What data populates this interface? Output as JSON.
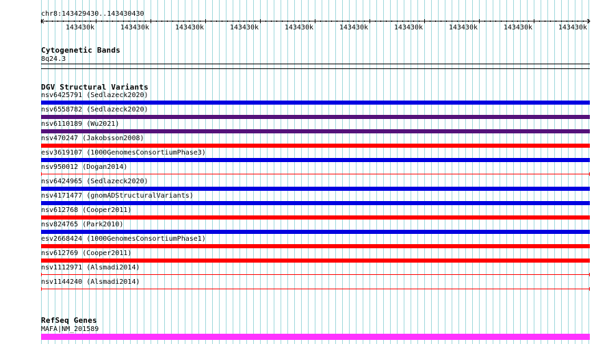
{
  "ruler": {
    "location": "chr8:143429430..143430430",
    "ticks": [
      "143430k",
      "143430k",
      "143430k",
      "143430k",
      "143430k",
      "143430k",
      "143430k",
      "143430k",
      "143430k",
      "143430k"
    ]
  },
  "cytogenetic": {
    "title": "Cytogenetic Bands",
    "band": "8q24.3"
  },
  "dgv": {
    "title": "DGV Structural Variants",
    "variants": [
      {
        "label": "nsv6425791 (Sedlazeck2020)",
        "color": "#0000e0",
        "style": "bar"
      },
      {
        "label": "nsv6558782 (Sedlazeck2020)",
        "color": "#54127a",
        "style": "bar"
      },
      {
        "label": "nsv6110189 (Wu2021)",
        "color": "#54127a",
        "style": "bar"
      },
      {
        "label": "nsv470247 (Jakobsson2008)",
        "color": "#ff0000",
        "style": "bar"
      },
      {
        "label": "esv3619107 (1000GenomesConsortiumPhase3)",
        "color": "#0000e0",
        "style": "bar"
      },
      {
        "label": "nsv950012 (Dogan2014)",
        "color": "#ff0000",
        "style": "line"
      },
      {
        "label": "nsv6424965 (Sedlazeck2020)",
        "color": "#0000e0",
        "style": "bar"
      },
      {
        "label": "nsv4171477 (gnomADStructuralVariants)",
        "color": "#0000e0",
        "style": "bar"
      },
      {
        "label": "nsv612768 (Cooper2011)",
        "color": "#ff0000",
        "style": "bar"
      },
      {
        "label": "nsv824765 (Park2010)",
        "color": "#0000e0",
        "style": "bar"
      },
      {
        "label": "esv2668424 (1000GenomesConsortiumPhase1)",
        "color": "#ff0000",
        "style": "bar"
      },
      {
        "label": "nsv612769 (Cooper2011)",
        "color": "#ff0000",
        "style": "bar"
      },
      {
        "label": "nsv1112971 (Alsmadi2014)",
        "color": "#ff0000",
        "style": "line"
      },
      {
        "label": "nsv1144240 (Alsmadi2014)",
        "color": "#ff0000",
        "style": "line"
      }
    ]
  },
  "refseq": {
    "title": "RefSeq Genes",
    "gene": "MAFA|NM_201589",
    "color": "#ff33ff"
  },
  "colors": {
    "grid_line": "#9fd8dc",
    "ruler": "#000000"
  }
}
